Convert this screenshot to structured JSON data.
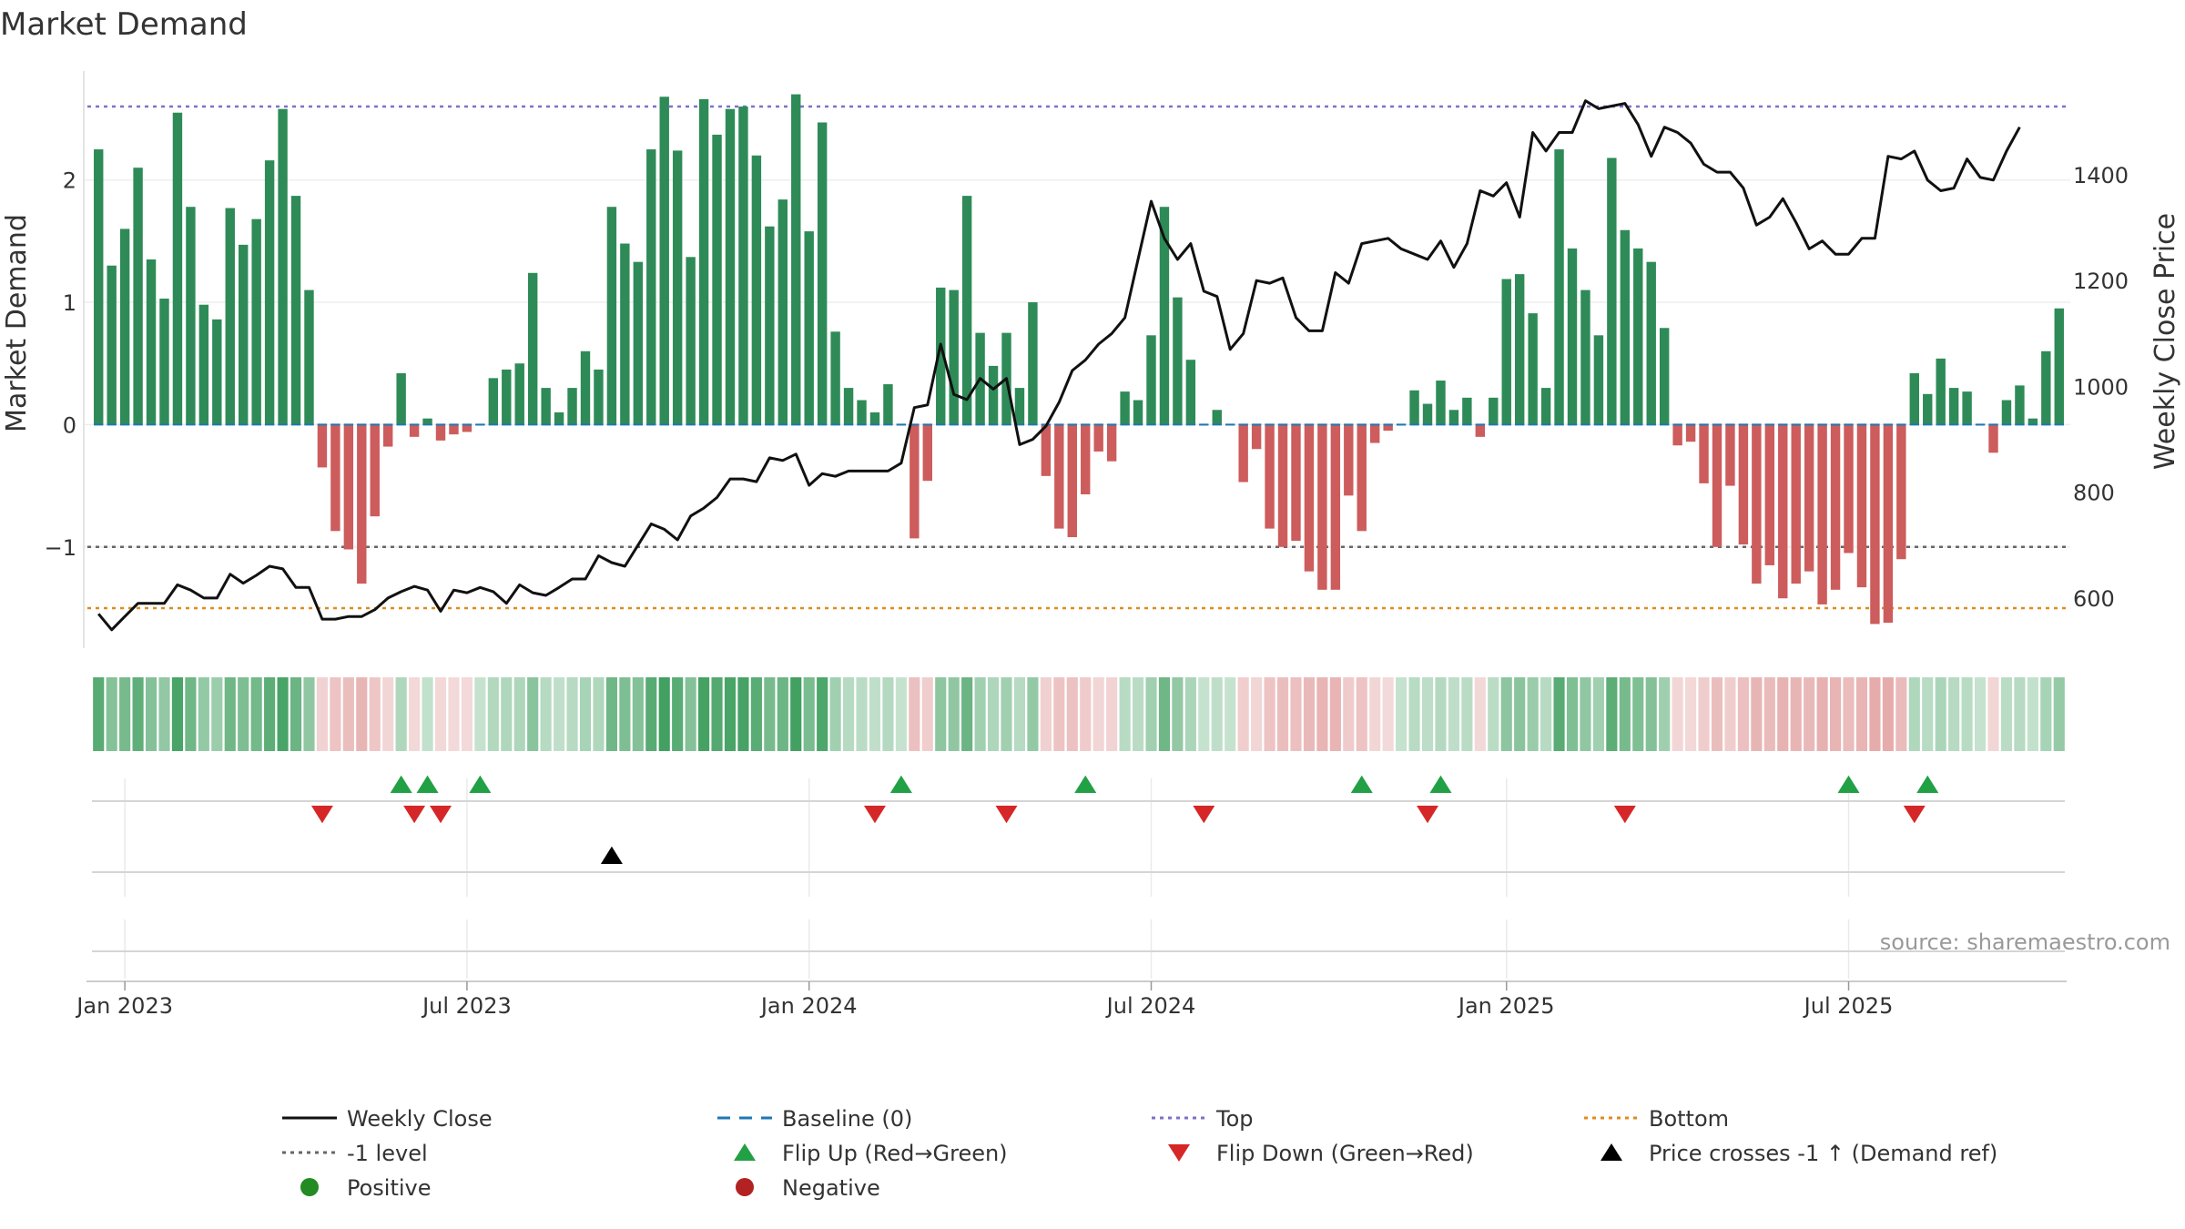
{
  "chart_data": {
    "type": "bar",
    "title": "Market Demand",
    "ylabel_left": "Market Demand",
    "ylabel_right": "Weekly Close Price",
    "source_text": "source: sharemaestro.com",
    "ylim_left": [
      -1.85,
      2.95
    ],
    "ylim_right": [
      500,
      1610
    ],
    "left_ticks": [
      {
        "v": -1,
        "label": "−1"
      },
      {
        "v": 0,
        "label": "0"
      },
      {
        "v": 1,
        "label": "1"
      },
      {
        "v": 2,
        "label": "2"
      }
    ],
    "right_ticks": [
      {
        "v": 600,
        "label": "600"
      },
      {
        "v": 800,
        "label": "800"
      },
      {
        "v": 1000,
        "label": "1000"
      },
      {
        "v": 1200,
        "label": "1200"
      },
      {
        "v": 1400,
        "label": "1400"
      }
    ],
    "x_ticks": [
      {
        "i": 2,
        "label": "Jan 2023"
      },
      {
        "i": 28,
        "label": "Jul 2023"
      },
      {
        "i": 54,
        "label": "Jan 2024"
      },
      {
        "i": 80,
        "label": "Jul 2024"
      },
      {
        "i": 107,
        "label": "Jan 2025"
      },
      {
        "i": 133,
        "label": "Jul 2025"
      }
    ],
    "levels": {
      "top": 2.6,
      "minus_one": -1,
      "bottom": -1.5,
      "baseline": 0
    },
    "colors": {
      "positive": "#2e8b57",
      "negative": "#cd5c5c",
      "line": "#111111",
      "top": "#7b72c8",
      "bottom": "#e08a1e",
      "minus_one": "#666666",
      "baseline": "#1f77b4",
      "flip_up": "#22a045",
      "flip_down": "#d62728",
      "cross": "#000000",
      "pos_dot": "#228b22",
      "neg_dot": "#b22222"
    },
    "demand": [
      2.25,
      1.3,
      1.6,
      2.1,
      1.35,
      1.03,
      2.55,
      1.78,
      0.98,
      0.86,
      1.77,
      1.47,
      1.68,
      2.16,
      2.58,
      1.87,
      1.1,
      -0.35,
      -0.87,
      -1.02,
      -1.3,
      -0.75,
      -0.18,
      0.42,
      -0.1,
      0.05,
      -0.13,
      -0.08,
      -0.06,
      0.0,
      0.38,
      0.45,
      0.5,
      1.24,
      0.3,
      0.1,
      0.3,
      0.6,
      0.45,
      1.78,
      1.48,
      1.33,
      2.25,
      2.68,
      2.24,
      1.37,
      2.66,
      2.37,
      2.58,
      2.6,
      2.2,
      1.62,
      1.84,
      2.7,
      1.58,
      2.47,
      0.76,
      0.3,
      0.2,
      0.1,
      0.33,
      0.0,
      -0.93,
      -0.46,
      1.12,
      1.1,
      1.87,
      0.75,
      0.48,
      0.75,
      0.3,
      1.0,
      -0.42,
      -0.85,
      -0.92,
      -0.57,
      -0.22,
      -0.3,
      0.27,
      0.2,
      0.73,
      1.78,
      1.04,
      0.53,
      0.0,
      0.12,
      0.0,
      -0.47,
      -0.2,
      -0.85,
      -1.0,
      -0.95,
      -1.2,
      -1.35,
      -1.35,
      -0.58,
      -0.87,
      -0.15,
      -0.05,
      0.0,
      0.28,
      0.17,
      0.36,
      0.12,
      0.22,
      -0.1,
      0.22,
      1.19,
      1.23,
      0.91,
      0.3,
      2.25,
      1.44,
      1.1,
      0.73,
      2.18,
      1.59,
      1.44,
      1.33,
      0.79,
      -0.17,
      -0.14,
      -0.48,
      -1.0,
      -0.5,
      -0.98,
      -1.3,
      -1.15,
      -1.42,
      -1.3,
      -1.2,
      -1.47,
      -1.35,
      -1.05,
      -1.33,
      -1.63,
      -1.62,
      -1.1,
      0.42,
      0.25,
      0.54,
      0.3,
      0.27,
      0.0,
      -0.23,
      0.2,
      0.32,
      0.05,
      0.6,
      0.95
    ],
    "close": [
      570,
      540,
      565,
      590,
      590,
      590,
      625,
      615,
      600,
      600,
      645,
      628,
      643,
      660,
      655,
      620,
      620,
      560,
      560,
      565,
      565,
      578,
      600,
      612,
      622,
      615,
      575,
      615,
      610,
      620,
      612,
      590,
      625,
      610,
      605,
      620,
      636,
      636,
      680,
      667,
      660,
      700,
      740,
      730,
      710,
      755,
      770,
      790,
      825,
      825,
      820,
      865,
      860,
      872,
      813,
      835,
      830,
      840,
      840,
      840,
      840,
      855,
      960,
      965,
      1080,
      985,
      975,
      1015,
      995,
      1015,
      890,
      900,
      925,
      970,
      1030,
      1050,
      1080,
      1100,
      1130,
      1240,
      1350,
      1280,
      1240,
      1270,
      1180,
      1170,
      1070,
      1100,
      1200,
      1195,
      1205,
      1130,
      1105,
      1105,
      1215,
      1195,
      1270,
      1275,
      1280,
      1260,
      1250,
      1240,
      1275,
      1225,
      1270,
      1370,
      1360,
      1385,
      1320,
      1480,
      1445,
      1480,
      1480,
      1540,
      1525,
      1530,
      1535,
      1495,
      1435,
      1490,
      1480,
      1460,
      1420,
      1405,
      1405,
      1375,
      1305,
      1320,
      1355,
      1310,
      1260,
      1275,
      1250,
      1250,
      1280,
      1280,
      1435,
      1430,
      1445,
      1390,
      1370,
      1375,
      1430,
      1395,
      1390,
      1445,
      1490
    ],
    "flip_up": [
      23,
      25,
      29,
      61,
      75,
      96,
      102,
      133,
      139
    ],
    "flip_down": [
      17,
      24,
      26,
      59,
      69,
      84,
      101,
      116,
      138
    ],
    "price_cross_up": [
      39
    ],
    "legend": [
      {
        "label": "Weekly Close",
        "symbol": "line",
        "color": "#111111"
      },
      {
        "label": "Baseline (0)",
        "symbol": "dash-long",
        "color": "#1f77b4"
      },
      {
        "label": "Top",
        "symbol": "dot-line",
        "color": "#7b72c8"
      },
      {
        "label": "Bottom",
        "symbol": "dot-line",
        "color": "#e08a1e"
      },
      {
        "label": "-1 level",
        "symbol": "dot-line",
        "color": "#666666"
      },
      {
        "label": "Flip Up (Red→Green)",
        "symbol": "triangle-up",
        "color": "#22a045"
      },
      {
        "label": "Flip Down (Green→Red)",
        "symbol": "triangle-down",
        "color": "#d62728"
      },
      {
        "label": "Price crosses -1 ↑ (Demand ref)",
        "symbol": "triangle-up",
        "color": "#000000"
      },
      {
        "label": "Positive",
        "symbol": "circle",
        "color": "#228b22"
      },
      {
        "label": "Negative",
        "symbol": "circle",
        "color": "#b22222"
      }
    ]
  }
}
